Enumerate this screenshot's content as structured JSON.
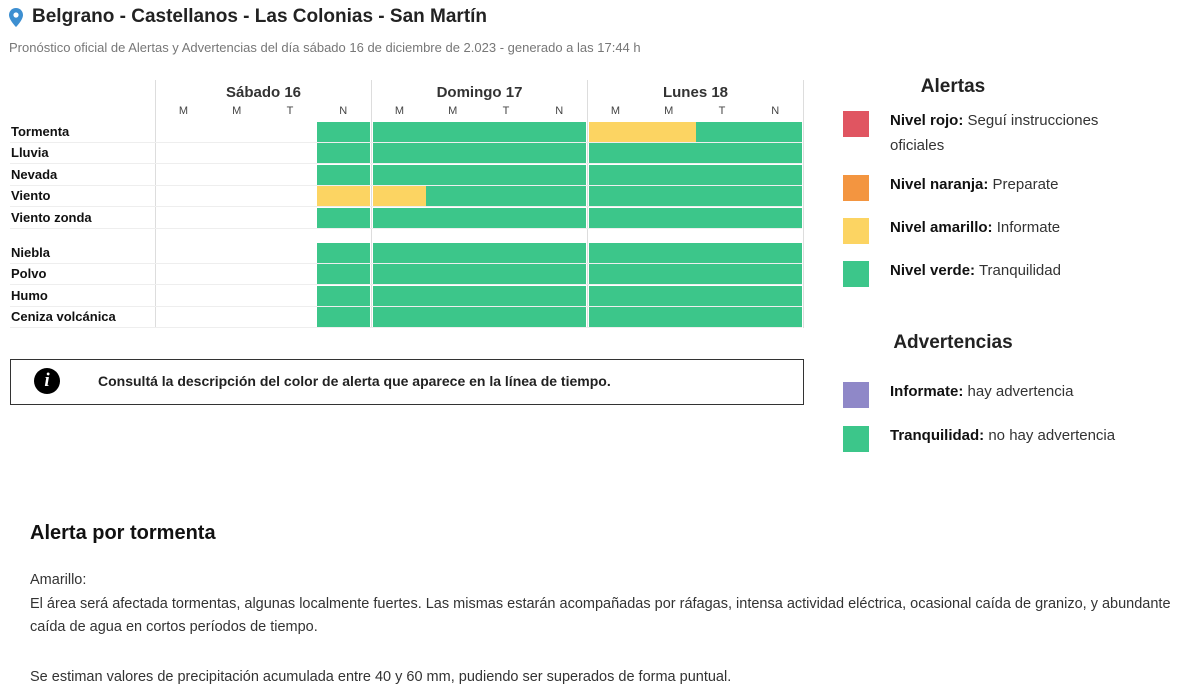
{
  "header": {
    "title": "Belgrano - Castellanos - Las Colonias - San Martín",
    "subtitle": "Pronóstico oficial de Alertas y Advertencias del día sábado 16 de diciembre de 2.023 - generado a las 17:44 h"
  },
  "timeline": {
    "colors": {
      "green": "#3cc68a",
      "yellow": "#fcd462"
    },
    "days": [
      {
        "name": "Sábado 16",
        "periods": [
          "M",
          "M",
          "T",
          "N"
        ]
      },
      {
        "name": "Domingo 17",
        "periods": [
          "M",
          "M",
          "T",
          "N"
        ]
      },
      {
        "name": "Lunes 18",
        "periods": [
          "M",
          "M",
          "T",
          "N"
        ]
      }
    ],
    "groups": [
      [
        {
          "label": "Tormenta",
          "cells": [
            null,
            null,
            null,
            "green",
            "green",
            "green",
            "green",
            "green",
            "yellow",
            "yellow",
            "green",
            "green"
          ]
        },
        {
          "label": "Lluvia",
          "cells": [
            null,
            null,
            null,
            "green",
            "green",
            "green",
            "green",
            "green",
            "green",
            "green",
            "green",
            "green"
          ]
        },
        {
          "label": "Nevada",
          "cells": [
            null,
            null,
            null,
            "green",
            "green",
            "green",
            "green",
            "green",
            "green",
            "green",
            "green",
            "green"
          ]
        },
        {
          "label": "Viento",
          "cells": [
            null,
            null,
            null,
            "yellow",
            "yellow",
            "green",
            "green",
            "green",
            "green",
            "green",
            "green",
            "green"
          ]
        },
        {
          "label": "Viento zonda",
          "cells": [
            null,
            null,
            null,
            "green",
            "green",
            "green",
            "green",
            "green",
            "green",
            "green",
            "green",
            "green"
          ]
        }
      ],
      [
        {
          "label": "Niebla",
          "cells": [
            null,
            null,
            null,
            "green",
            "green",
            "green",
            "green",
            "green",
            "green",
            "green",
            "green",
            "green"
          ]
        },
        {
          "label": "Polvo",
          "cells": [
            null,
            null,
            null,
            "green",
            "green",
            "green",
            "green",
            "green",
            "green",
            "green",
            "green",
            "green"
          ]
        },
        {
          "label": "Humo",
          "cells": [
            null,
            null,
            null,
            "green",
            "green",
            "green",
            "green",
            "green",
            "green",
            "green",
            "green",
            "green"
          ]
        },
        {
          "label": "Ceniza volcánica",
          "cells": [
            null,
            null,
            null,
            "green",
            "green",
            "green",
            "green",
            "green",
            "green",
            "green",
            "green",
            "green"
          ]
        }
      ]
    ]
  },
  "info": {
    "text": "Consultá la descripción del color de alerta que aparece en la línea de tiempo.",
    "icon": "i"
  },
  "legend": {
    "alertas": {
      "title": "Alertas",
      "items": [
        {
          "color": "#e05561",
          "label": "Nivel rojo:",
          "text": "Seguí instrucciones oficiales"
        },
        {
          "color": "#f39540",
          "label": "Nivel naranja:",
          "text": "Preparate"
        },
        {
          "color": "#fcd462",
          "label": "Nivel amarillo:",
          "text": "Informate"
        },
        {
          "color": "#3cc68a",
          "label": "Nivel verde:",
          "text": "Tranquilidad"
        }
      ]
    },
    "advertencias": {
      "title": "Advertencias",
      "items": [
        {
          "color": "#8f88c8",
          "label": "Informate:",
          "text": "hay advertencia"
        },
        {
          "color": "#3cc68a",
          "label": "Tranquilidad:",
          "text": "no hay advertencia"
        }
      ]
    }
  },
  "section": {
    "title": "Alerta por tormenta",
    "level": "Amarillo:",
    "paragraphs": [
      "El área será afectada tormentas, algunas localmente fuertes. Las mismas estarán acompañadas por ráfagas, intensa actividad eléctrica, ocasional caída de granizo, y abundante caída de agua en cortos períodos de tiempo.",
      "Se estiman valores de precipitación acumulada entre 40 y 60 mm, pudiendo ser superados de forma puntual."
    ]
  }
}
